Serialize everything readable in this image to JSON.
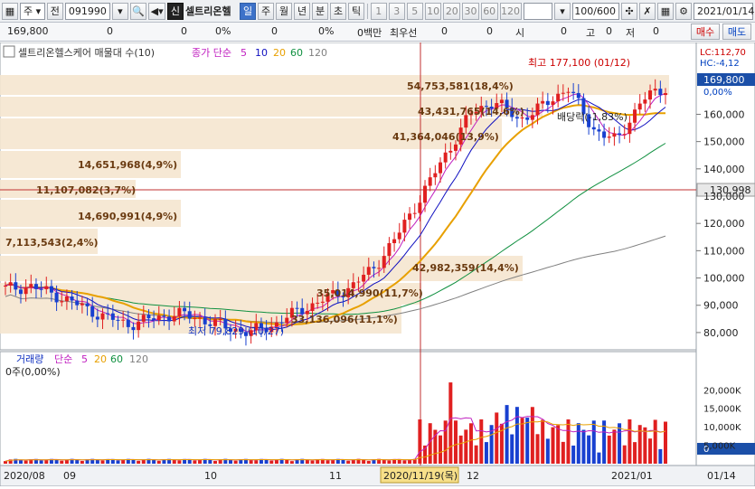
{
  "toolbar": {
    "market": "주",
    "prev_label": "전",
    "code": "091990",
    "stock_name": "셀트리온헬",
    "new_badge": "신",
    "periods": [
      "일",
      "주",
      "월",
      "년",
      "분",
      "초",
      "틱"
    ],
    "active_period": "일",
    "intervals": [
      "1",
      "3",
      "5",
      "10",
      "20",
      "30",
      "60",
      "120"
    ],
    "count": "100/600",
    "date": "2021/01/14"
  },
  "quote": {
    "price": "169,800",
    "change": "0",
    "c2": "0",
    "pct1": "0%",
    "c3": "0",
    "pct2": "0%",
    "amount": "0백만",
    "best_ask_label": "최우선",
    "ask_val": "0",
    "c4": "0",
    "open_label": "시",
    "open_val": "0",
    "high_label": "고",
    "high_val": "0",
    "low_label": "저",
    "low_val": "0",
    "buy_button": "매수",
    "sell_button": "매도"
  },
  "price_panel": {
    "title": "셀트리온헬스케어 매물대 수(10)",
    "legend_prefix": "종가 단순",
    "ma_labels": [
      "5",
      "10",
      "20",
      "60",
      "120"
    ],
    "ma_colors": [
      "#c020c0",
      "#1010c0",
      "#e8a000",
      "#109040",
      "#808080"
    ],
    "lc": "LC:112,70",
    "hc": "HC:-4,12",
    "current_price": "169,800",
    "current_pct": "0,00%",
    "ref_line_price": "130,998",
    "high_note": "최고 177,100 (01/12)",
    "low_note": "최저 79,829 (10/27)",
    "dividend_note": "배당락(-1,83%)",
    "y_ticks": [
      "160,000",
      "150,000",
      "140,000",
      "130,000",
      "120,000",
      "110,000",
      "100,000",
      "90,000",
      "80,000"
    ]
  },
  "volume_profile": [
    "54,753,581(18,4%)",
    "43,431,765(14,6%)",
    "41,364,046(13,9%)",
    "14,651,968(4,9%)",
    "11,107,082(3,7%)",
    "14,690,991(4,9%)",
    "7,113,543(2,4%)",
    "42,982,359(14,4%)",
    "35,014,990(11,7%)",
    "33,136,096(11,1%)"
  ],
  "volume_panel": {
    "title": "거래량",
    "legend_prefix": "단순",
    "ma_labels": [
      "5",
      "20",
      "60",
      "120"
    ],
    "status": "0주(0,00%)",
    "current": "0",
    "y_ticks": [
      "20,000K",
      "15,000K",
      "10,000K",
      "5,000K"
    ]
  },
  "x_axis": {
    "labels": [
      "2020/08",
      "09",
      "10",
      "11",
      "12",
      "2021/01",
      "01/14"
    ],
    "cursor_label": "2020/11/19(목)"
  },
  "chart_data": {
    "type": "candlestick",
    "period": "daily",
    "ylim": [
      75000,
      185000
    ],
    "close_trace": [
      96000,
      97000,
      94000,
      90000,
      86000,
      83000,
      85000,
      87000,
      85000,
      82000,
      80000,
      83000,
      88000,
      92000,
      96000,
      103000,
      115000,
      130000,
      145000,
      160000,
      165000,
      158000,
      163000,
      170000,
      155000,
      150000,
      165000,
      169800
    ],
    "volume_max": 23000
  }
}
